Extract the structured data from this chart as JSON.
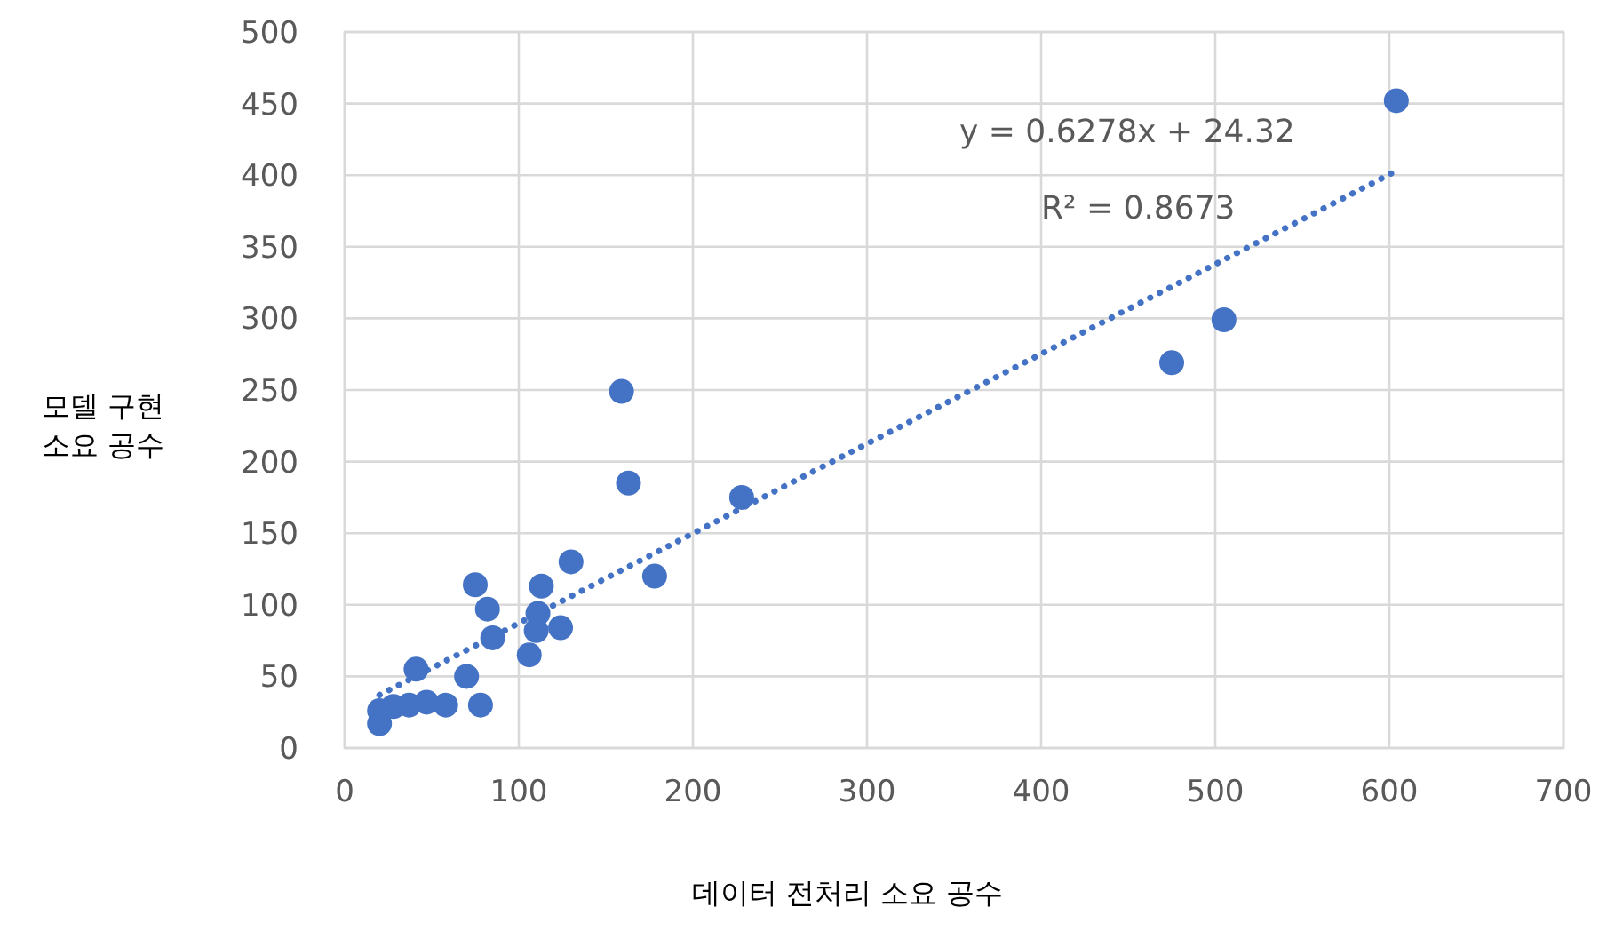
{
  "chart_data": {
    "type": "scatter",
    "xlabel": "데이터 전처리 소요 공수",
    "ylabel": "모델 구현\n소요 공수",
    "xlim": [
      0,
      700
    ],
    "xticks": [
      0,
      100,
      200,
      300,
      400,
      500,
      600,
      700
    ],
    "ylim": [
      0,
      500
    ],
    "yticks": [
      0,
      50,
      100,
      150,
      200,
      250,
      300,
      350,
      400,
      450,
      500
    ],
    "grid": true,
    "annotations": [
      "y = 0.6278x + 24.32",
      "R² = 0.8673"
    ],
    "series": [
      {
        "type": "scatter",
        "color": "#4472c4",
        "marker": "circle",
        "x": [
          20,
          20,
          28,
          37,
          47,
          58,
          41,
          70,
          78,
          75,
          82,
          85,
          106,
          110,
          111,
          113,
          124,
          130,
          159,
          163,
          178,
          228,
          475,
          505,
          604
        ],
        "values": [
          17,
          26,
          29,
          30,
          32,
          30,
          55,
          50,
          30,
          114,
          97,
          77,
          65,
          82,
          94,
          113,
          84,
          130,
          249,
          185,
          120,
          175,
          269,
          299,
          452
        ]
      },
      {
        "type": "line",
        "color": "#4472c4",
        "line_style": "dotted",
        "marker": "none",
        "x": [
          20,
          604
        ],
        "values": [
          37,
          403
        ]
      }
    ]
  }
}
